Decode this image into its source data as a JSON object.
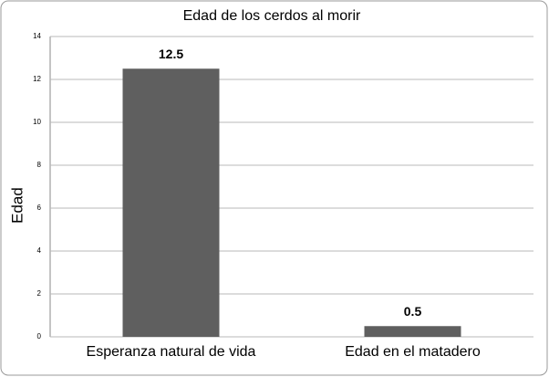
{
  "chart_data": {
    "type": "bar",
    "title": "Edad de los cerdos al morir",
    "y_label": "Edad",
    "categories": [
      "Esperanza natural de vida",
      "Edad en el matadero"
    ],
    "values": [
      12.5,
      0.5
    ],
    "color": "#5f5f5f",
    "ylim": [
      0,
      14
    ],
    "yticks": [
      0,
      2,
      4,
      6,
      8,
      10,
      12,
      14
    ],
    "grid": true
  }
}
